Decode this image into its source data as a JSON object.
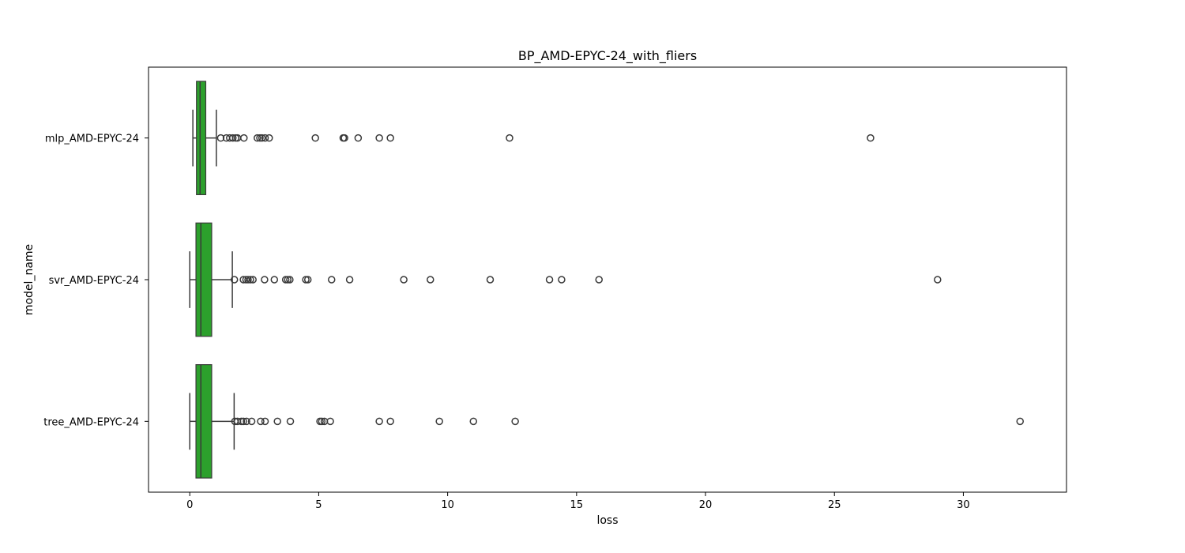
{
  "chart_data": {
    "type": "boxplot",
    "orientation": "horizontal",
    "title": "BP_AMD-EPYC-24_with_fliers",
    "xlabel": "loss",
    "ylabel": "model_name",
    "xlim": [
      -1.6,
      34
    ],
    "xticks": [
      0,
      5,
      10,
      15,
      20,
      25,
      30
    ],
    "grid": false,
    "box_color": "#2ca02c",
    "line_color": "#3a3a3a",
    "categories": [
      "mlp_AMD-EPYC-24",
      "svr_AMD-EPYC-24",
      "tree_AMD-EPYC-24"
    ],
    "series": [
      {
        "category": "mlp_AMD-EPYC-24",
        "whisker_low": 0.12,
        "q1": 0.26,
        "median": 0.4,
        "q3": 0.62,
        "whisker_high": 1.03,
        "fliers": [
          1.2,
          1.42,
          1.55,
          1.67,
          1.78,
          1.85,
          2.1,
          2.62,
          2.72,
          2.8,
          2.92,
          3.08,
          4.87,
          5.95,
          6.0,
          6.53,
          7.35,
          7.78,
          12.4,
          26.4
        ]
      },
      {
        "category": "svr_AMD-EPYC-24",
        "whisker_low": 0.0,
        "q1": 0.24,
        "median": 0.43,
        "q3": 0.85,
        "whisker_high": 1.65,
        "fliers": [
          1.73,
          2.08,
          2.18,
          2.26,
          2.35,
          2.45,
          2.9,
          3.28,
          3.72,
          3.8,
          3.88,
          4.5,
          4.58,
          5.5,
          6.2,
          8.3,
          9.33,
          11.65,
          13.95,
          14.42,
          15.87,
          29.0
        ]
      },
      {
        "category": "tree_AMD-EPYC-24",
        "whisker_low": 0.0,
        "q1": 0.24,
        "median": 0.43,
        "q3": 0.85,
        "whisker_high": 1.72,
        "fliers": [
          1.75,
          1.85,
          2.0,
          2.08,
          2.2,
          2.4,
          2.75,
          2.92,
          3.4,
          3.9,
          5.05,
          5.12,
          5.22,
          5.45,
          7.35,
          7.78,
          9.68,
          11.0,
          12.62,
          32.2
        ]
      }
    ]
  }
}
